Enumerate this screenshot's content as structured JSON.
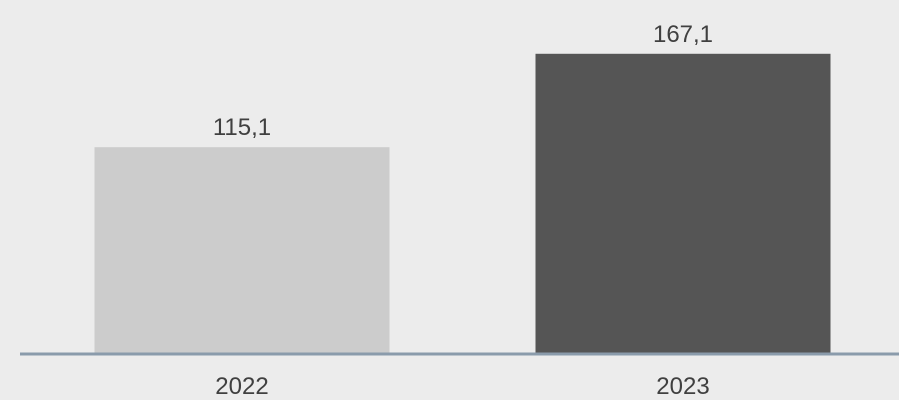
{
  "chart_data": {
    "type": "bar",
    "categories": [
      "2022",
      "2023"
    ],
    "values": [
      115.1,
      167.1
    ],
    "value_labels": [
      "115,1",
      "167,1"
    ],
    "bar_colors": [
      "#cccccc",
      "#555555"
    ],
    "baseline_color": "#8a9bab",
    "background_color": "#ececec",
    "label_color": "#404040",
    "ylim": [
      0,
      177
    ],
    "grid": false,
    "legend": "none"
  }
}
